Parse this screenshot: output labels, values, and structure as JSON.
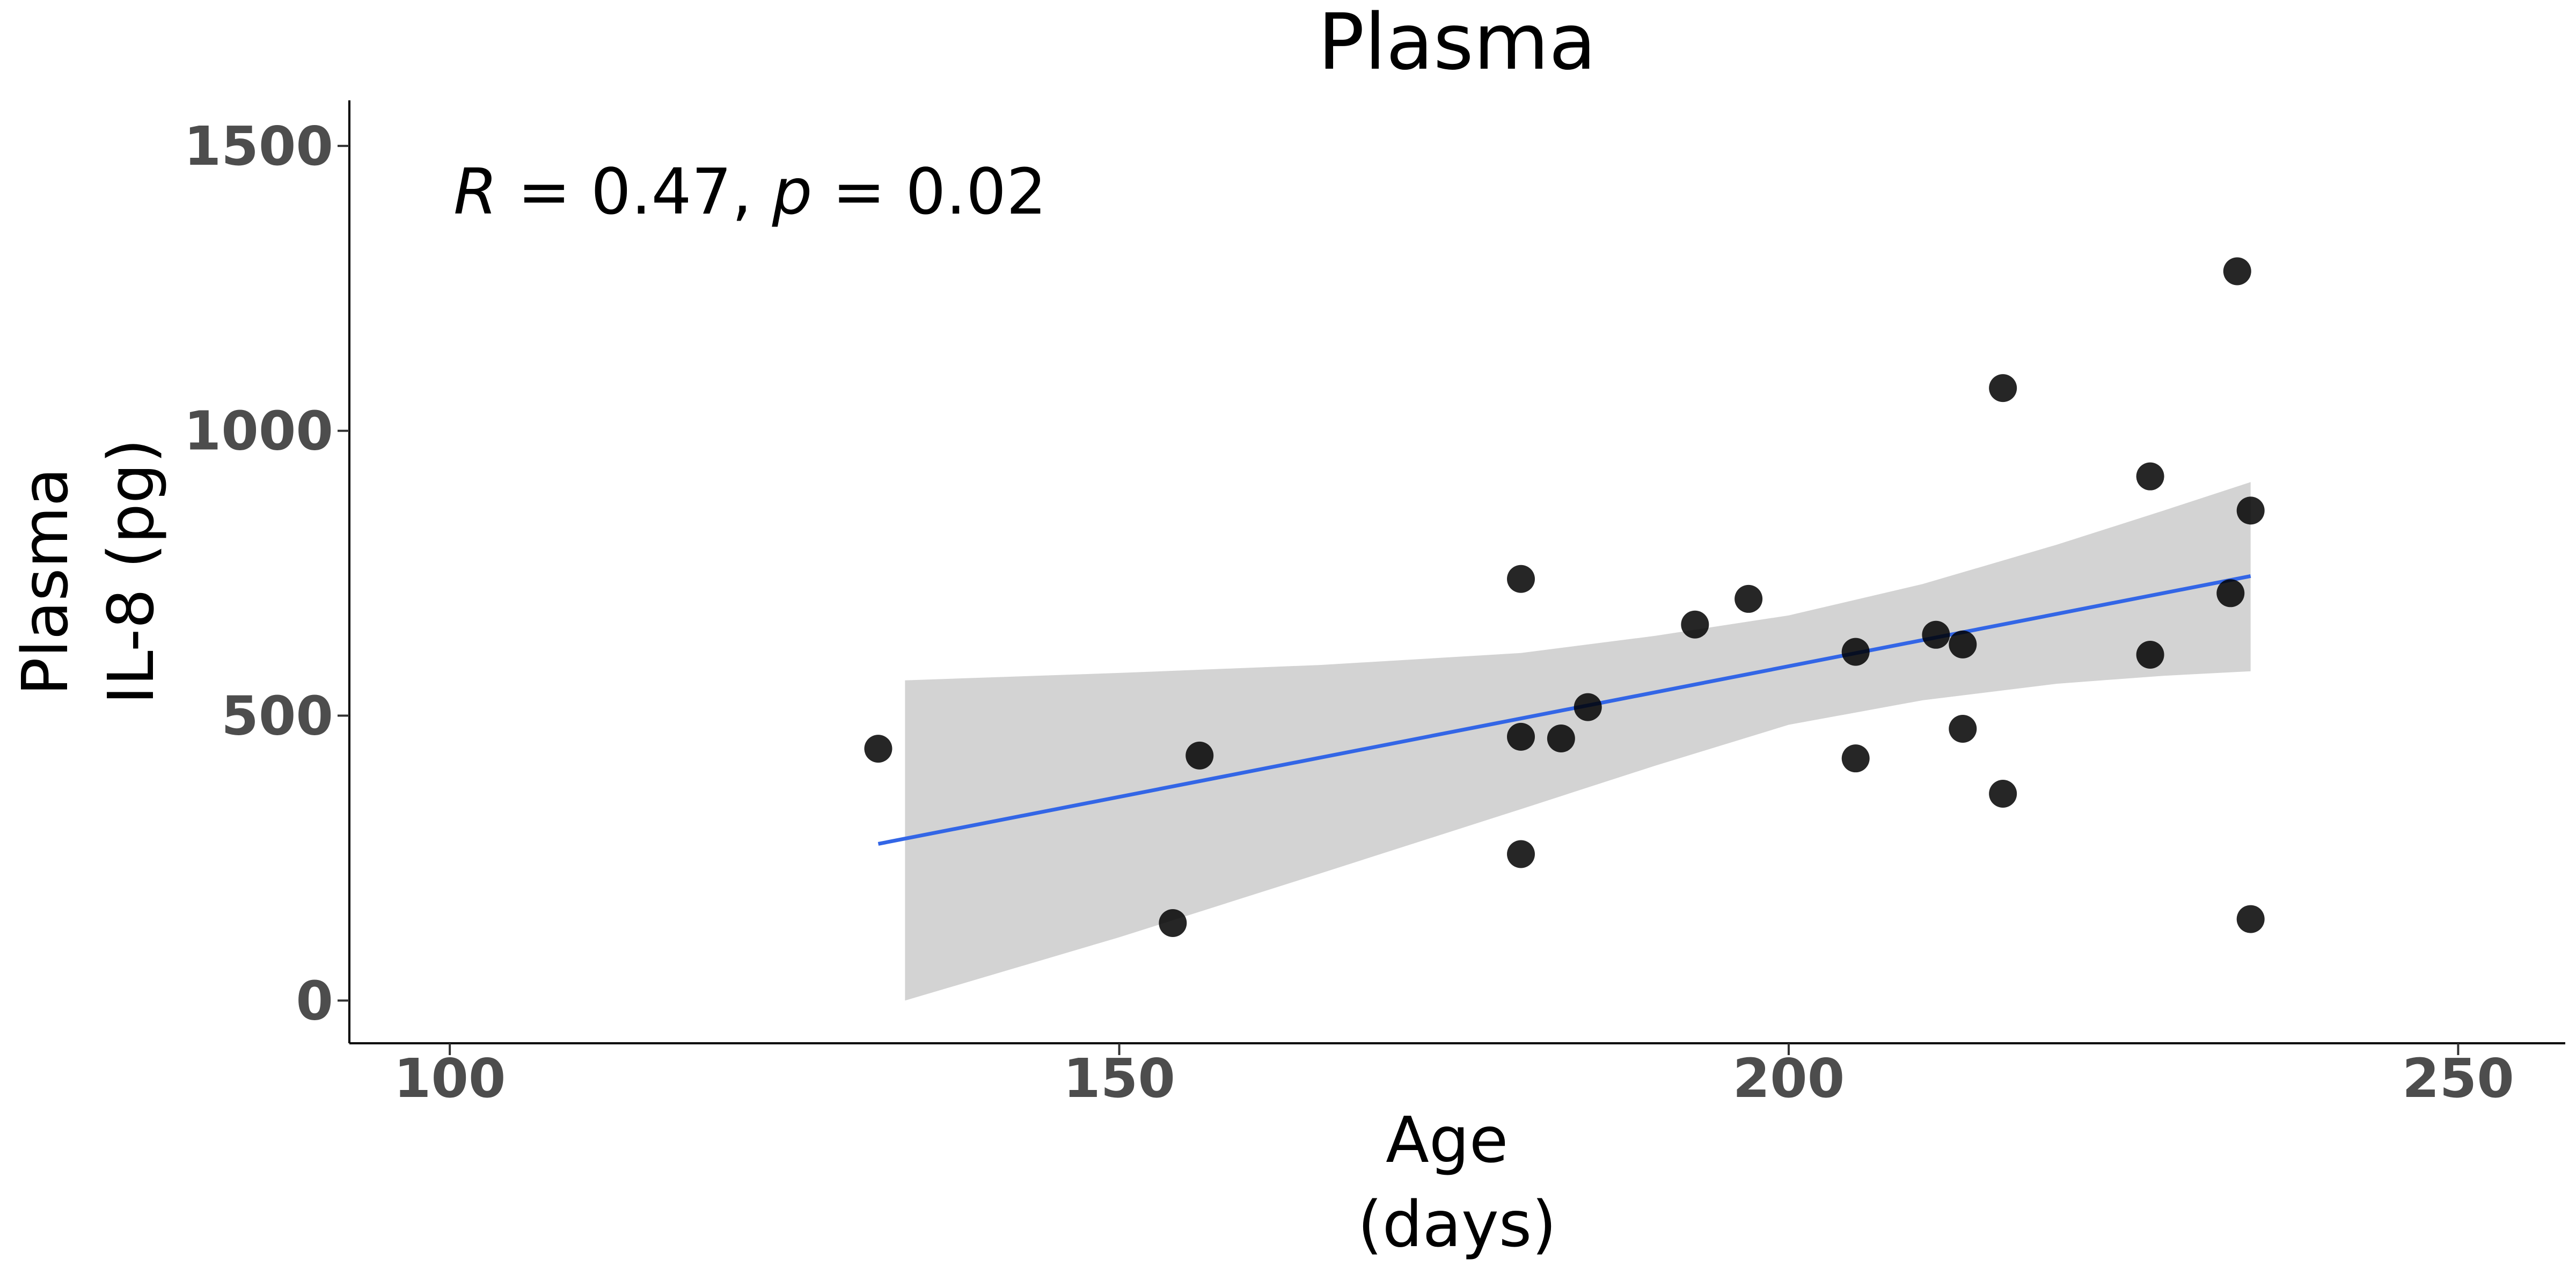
{
  "chart_data": {
    "type": "scatter",
    "title": "Plasma",
    "xlabel": [
      "Age",
      "(days)"
    ],
    "ylabel": [
      "Plasma",
      "IL-8 (pg)"
    ],
    "xlim": [
      92.5,
      258
    ],
    "ylim": [
      -75,
      1580
    ],
    "xticks": [
      100,
      150,
      200,
      250
    ],
    "yticks": [
      0,
      500,
      1000,
      1500
    ],
    "grid": false,
    "stat_text": {
      "r_symbol": "R",
      "r_value": " = 0.47, ",
      "p_symbol": "p",
      "p_value": " = 0.02"
    },
    "point_color": "#000000",
    "line_color": "#3366e6",
    "band_color": "#d3d3d3",
    "points": [
      {
        "x": 132,
        "y": 442
      },
      {
        "x": 154,
        "y": 136
      },
      {
        "x": 156,
        "y": 430
      },
      {
        "x": 180,
        "y": 740
      },
      {
        "x": 180,
        "y": 463
      },
      {
        "x": 180,
        "y": 257
      },
      {
        "x": 183,
        "y": 460
      },
      {
        "x": 185,
        "y": 515
      },
      {
        "x": 193,
        "y": 660
      },
      {
        "x": 197,
        "y": 705
      },
      {
        "x": 205,
        "y": 612
      },
      {
        "x": 205,
        "y": 425
      },
      {
        "x": 211,
        "y": 642
      },
      {
        "x": 213,
        "y": 625
      },
      {
        "x": 213,
        "y": 477
      },
      {
        "x": 216,
        "y": 1075
      },
      {
        "x": 216,
        "y": 363
      },
      {
        "x": 227,
        "y": 920
      },
      {
        "x": 227,
        "y": 607
      },
      {
        "x": 233,
        "y": 715
      },
      {
        "x": 233.5,
        "y": 1280
      },
      {
        "x": 234.5,
        "y": 860
      },
      {
        "x": 234.5,
        "y": 143
      }
    ],
    "fit_line": [
      {
        "x": 132,
        "y": 275
      },
      {
        "x": 234.5,
        "y": 745
      }
    ],
    "ci_band": [
      {
        "x": 134,
        "lower": 0,
        "upper": 562
      },
      {
        "x": 150,
        "lower": 111,
        "upper": 575
      },
      {
        "x": 165,
        "lower": 223,
        "upper": 589
      },
      {
        "x": 180,
        "lower": 336,
        "upper": 610
      },
      {
        "x": 190,
        "lower": 412,
        "upper": 640
      },
      {
        "x": 200,
        "lower": 484,
        "upper": 676
      },
      {
        "x": 210,
        "lower": 527,
        "upper": 731
      },
      {
        "x": 220,
        "lower": 556,
        "upper": 800
      },
      {
        "x": 228,
        "lower": 570,
        "upper": 860
      },
      {
        "x": 234.5,
        "lower": 578,
        "upper": 910
      }
    ]
  }
}
